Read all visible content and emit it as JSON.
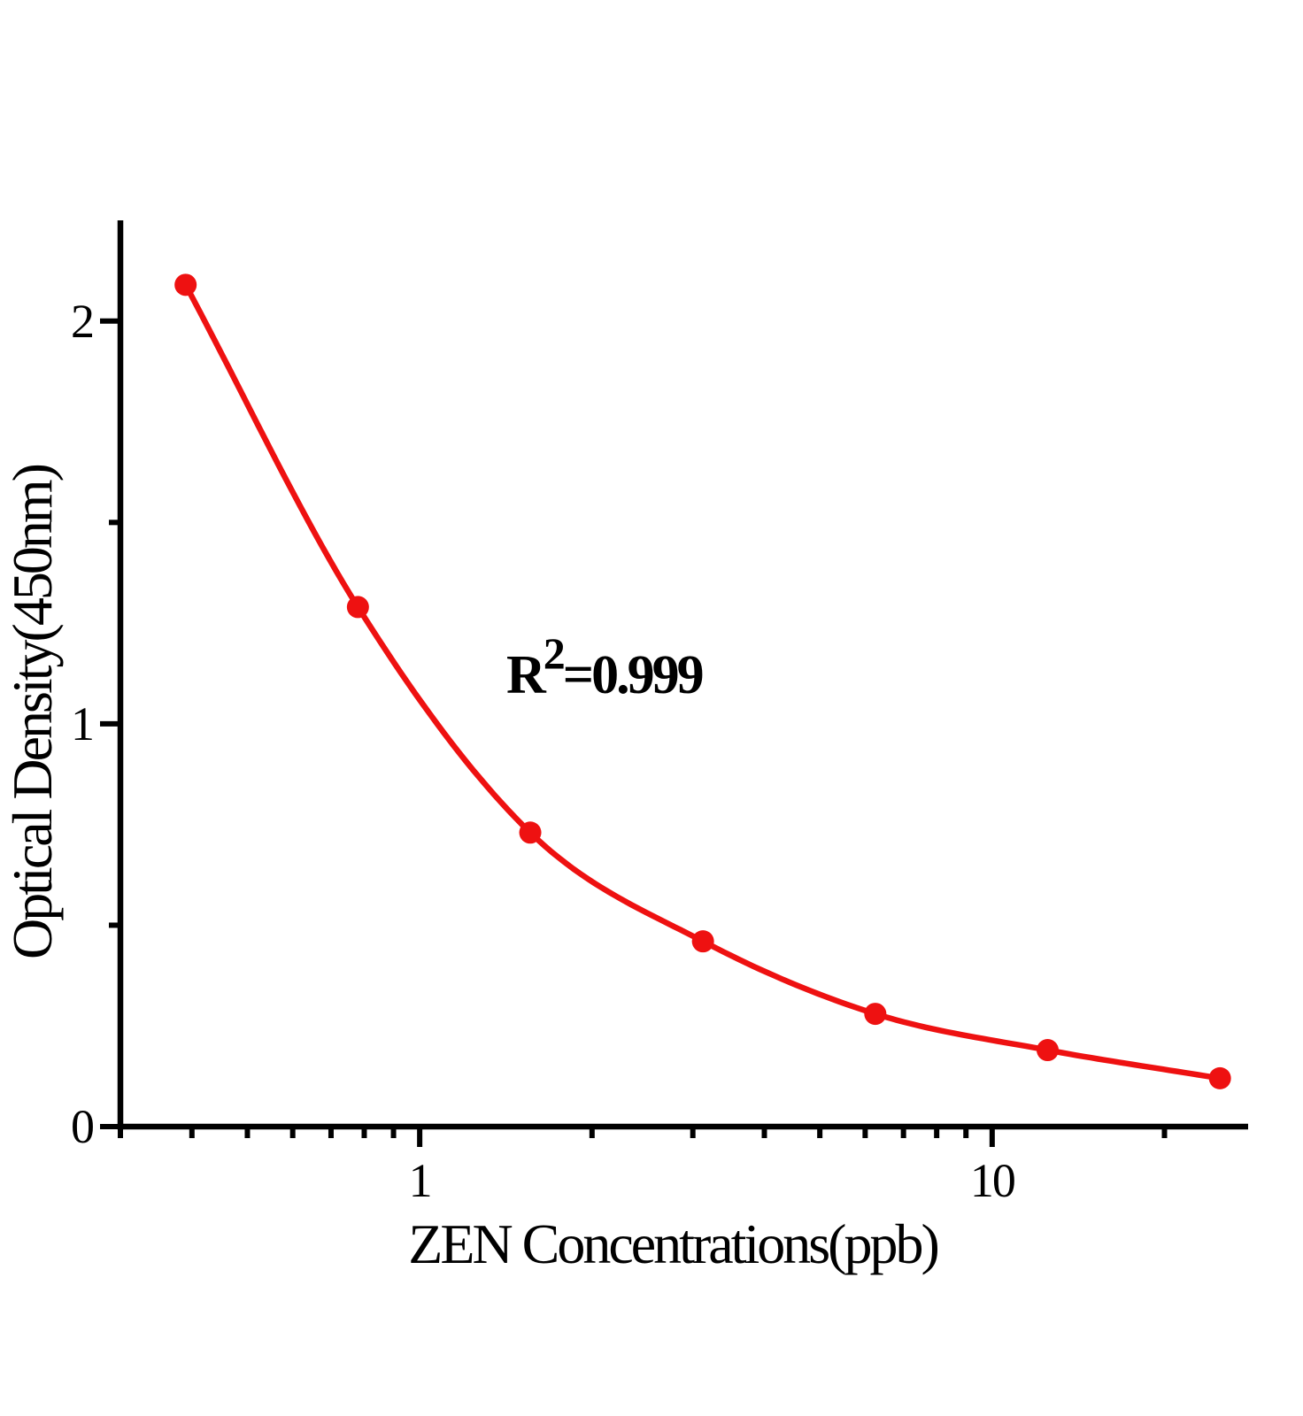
{
  "figure": {
    "background": "#ffffff"
  },
  "chart_data": {
    "type": "scatter",
    "title": "",
    "xlabel": "ZEN Concentrations(ppb)",
    "ylabel": "Optical Density(450nm)",
    "annotation": {
      "base": "R",
      "sup": "2",
      "rest": "=0.999"
    },
    "x_scale": "log10",
    "y_scale": "linear",
    "xlim": [
      0.3,
      28
    ],
    "ylim": [
      0,
      2.25
    ],
    "x_major_ticks": [
      1,
      10
    ],
    "x_major_tick_labels": [
      "1",
      "10"
    ],
    "x_minor_ticks": [
      0.3,
      0.4,
      0.5,
      0.6,
      0.7,
      0.8,
      0.9,
      2,
      3,
      4,
      5,
      6,
      7,
      8,
      9,
      20
    ],
    "y_major_ticks": [
      0,
      1,
      2
    ],
    "y_major_tick_labels": [
      "0",
      "1",
      "2"
    ],
    "y_minor_ticks": [
      0.5,
      1.5
    ],
    "grid": false,
    "legend": false,
    "series": [
      {
        "color": "#ee1111",
        "marker": "circle",
        "line": "smooth",
        "x": [
          0.39,
          0.78,
          1.56,
          3.125,
          6.25,
          12.5,
          25
        ],
        "y": [
          2.09,
          1.29,
          0.73,
          0.46,
          0.28,
          0.19,
          0.12
        ]
      }
    ],
    "colors": {
      "axis": "#000000",
      "text": "#000000",
      "background": "#ffffff"
    }
  }
}
